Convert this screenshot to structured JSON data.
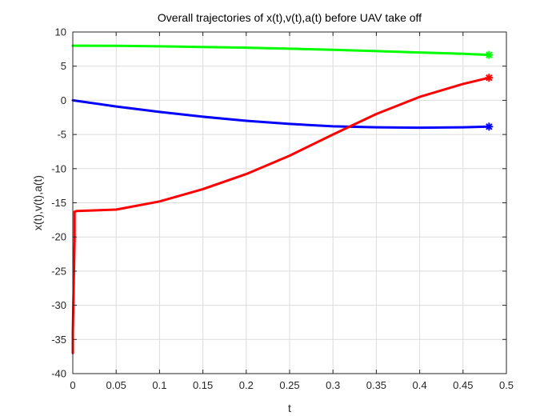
{
  "chart_data": {
    "type": "line",
    "title": "Overall trajectories of x(t),v(t),a(t) before UAV take off",
    "xlabel": "t",
    "ylabel": "x(t),v(t),a(t)",
    "xlim": [
      0,
      0.5
    ],
    "ylim": [
      -40,
      10
    ],
    "xticks": [
      0,
      0.05,
      0.1,
      0.15,
      0.2,
      0.25,
      0.3,
      0.35,
      0.4,
      0.45,
      0.5
    ],
    "xtick_labels": [
      "0",
      "0.05",
      "0.1",
      "0.15",
      "0.2",
      "0.25",
      "0.3",
      "0.35",
      "0.4",
      "0.45",
      "0.5"
    ],
    "yticks": [
      -40,
      -35,
      -30,
      -25,
      -20,
      -15,
      -10,
      -5,
      0,
      5,
      10
    ],
    "ytick_labels": [
      "-40",
      "-35",
      "-30",
      "-25",
      "-20",
      "-15",
      "-10",
      "-5",
      "0",
      "5",
      "10"
    ],
    "grid": true,
    "series": [
      {
        "color": "#00ff00",
        "end_marker": "asterisk",
        "x": [
          0,
          0.05,
          0.1,
          0.15,
          0.2,
          0.25,
          0.3,
          0.35,
          0.4,
          0.45,
          0.48
        ],
        "y": [
          8.0,
          7.97,
          7.9,
          7.8,
          7.7,
          7.55,
          7.4,
          7.2,
          7.0,
          6.8,
          6.65
        ]
      },
      {
        "color": "#0000ff",
        "end_marker": "asterisk",
        "x": [
          0,
          0.05,
          0.1,
          0.15,
          0.2,
          0.25,
          0.3,
          0.35,
          0.4,
          0.45,
          0.48
        ],
        "y": [
          0.0,
          -0.9,
          -1.7,
          -2.4,
          -3.0,
          -3.45,
          -3.8,
          -3.95,
          -4.0,
          -3.95,
          -3.85
        ]
      },
      {
        "color": "#ff0000",
        "end_marker": "asterisk",
        "x": [
          0,
          0,
          0.002,
          0.002,
          0.005,
          0.05,
          0.1,
          0.15,
          0.2,
          0.25,
          0.3,
          0.35,
          0.4,
          0.45,
          0.48
        ],
        "y": [
          -37.0,
          -34.0,
          -20.5,
          -16.3,
          -16.2,
          -16.0,
          -14.8,
          -13.0,
          -10.8,
          -8.1,
          -5.0,
          -2.0,
          0.5,
          2.4,
          3.3
        ]
      }
    ]
  }
}
